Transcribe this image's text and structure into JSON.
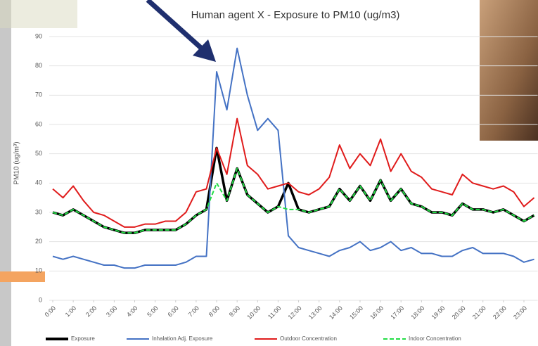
{
  "chart_data": {
    "type": "line",
    "title": "Human agent X - Exposure to PM10 (ug/m3)",
    "y_label": "PM10 (ug/m³)",
    "x": [
      0,
      0.5,
      1,
      1.5,
      2,
      2.5,
      3,
      3.5,
      4,
      4.5,
      5,
      5.5,
      6,
      6.5,
      7,
      7.5,
      8,
      8.5,
      9,
      9.5,
      10,
      10.5,
      11,
      11.5,
      12,
      12.5,
      13,
      13.5,
      14,
      14.5,
      15,
      15.5,
      16,
      16.5,
      17,
      17.5,
      18,
      18.5,
      19,
      19.5,
      20,
      20.5,
      21,
      21.5,
      22,
      22.5,
      23,
      23.5
    ],
    "series": [
      {
        "name": "Exposure",
        "color": "#000000",
        "dashed": false,
        "values": [
          30,
          29,
          31,
          29,
          27,
          25,
          24,
          23,
          23,
          24,
          24,
          24,
          24,
          26,
          29,
          31,
          52,
          34,
          45,
          36,
          33,
          30,
          32,
          40,
          31,
          30,
          31,
          32,
          38,
          34,
          39,
          34,
          41,
          34,
          38,
          33,
          32,
          30,
          30,
          29,
          33,
          31,
          31,
          30,
          31,
          29,
          27,
          29
        ]
      },
      {
        "name": "Inhalation Adj. Exposure",
        "color": "#4472c4",
        "dashed": false,
        "values": [
          15,
          14,
          15,
          14,
          13,
          12,
          12,
          11,
          11,
          12,
          12,
          12,
          12,
          13,
          15,
          15,
          78,
          65,
          86,
          70,
          58,
          62,
          58,
          22,
          18,
          17,
          16,
          15,
          17,
          18,
          20,
          17,
          18,
          20,
          17,
          18,
          16,
          16,
          15,
          15,
          17,
          18,
          16,
          16,
          16,
          15,
          13,
          14
        ]
      },
      {
        "name": "Outdoor Concentration",
        "color": "#e01b1b",
        "dashed": false,
        "values": [
          38,
          35,
          39,
          34,
          30,
          29,
          27,
          25,
          25,
          26,
          26,
          27,
          27,
          30,
          37,
          38,
          52,
          43,
          62,
          46,
          43,
          38,
          39,
          40,
          37,
          36,
          38,
          42,
          53,
          45,
          50,
          46,
          55,
          44,
          50,
          44,
          42,
          38,
          37,
          36,
          43,
          40,
          39,
          38,
          39,
          37,
          32,
          35
        ]
      },
      {
        "name": "Indoor Concentration",
        "color": "#22dd44",
        "dashed": true,
        "values": [
          30,
          29,
          31,
          29,
          27,
          25,
          24,
          23,
          23,
          24,
          24,
          24,
          24,
          26,
          29,
          31,
          40,
          34,
          45,
          36,
          33,
          30,
          32,
          31,
          31,
          30,
          31,
          32,
          38,
          34,
          39,
          34,
          41,
          34,
          38,
          33,
          32,
          30,
          30,
          29,
          33,
          31,
          31,
          30,
          31,
          29,
          27,
          29
        ]
      }
    ],
    "xlim": [
      0,
      23.5
    ],
    "xticks": [
      {
        "value": 0,
        "label": "0:00"
      },
      {
        "value": 1,
        "label": "1:00"
      },
      {
        "value": 2,
        "label": "2:00"
      },
      {
        "value": 3,
        "label": "3:00"
      },
      {
        "value": 4,
        "label": "4:00"
      },
      {
        "value": 5,
        "label": "5:00"
      },
      {
        "value": 6,
        "label": "6:00"
      },
      {
        "value": 7,
        "label": "7:00"
      },
      {
        "value": 8,
        "label": "8:00"
      },
      {
        "value": 9,
        "label": "9:00"
      },
      {
        "value": 10,
        "label": "10:00"
      },
      {
        "value": 11,
        "label": "11:00"
      },
      {
        "value": 12,
        "label": "12:00"
      },
      {
        "value": 13,
        "label": "13:00"
      },
      {
        "value": 14,
        "label": "14:00"
      },
      {
        "value": 15,
        "label": "15:00"
      },
      {
        "value": 16,
        "label": "16:00"
      },
      {
        "value": 17,
        "label": "17:00"
      },
      {
        "value": 18,
        "label": "18:00"
      },
      {
        "value": 19,
        "label": "19:00"
      },
      {
        "value": 20,
        "label": "20:00"
      },
      {
        "value": 21,
        "label": "21:00"
      },
      {
        "value": 22,
        "label": "22:00"
      },
      {
        "value": 23,
        "label": "23:00"
      }
    ],
    "ylim": [
      0,
      90
    ],
    "yticks": [
      0,
      10,
      20,
      30,
      40,
      50,
      60,
      70,
      80,
      90
    ],
    "grid": true,
    "legend": "bottom"
  }
}
